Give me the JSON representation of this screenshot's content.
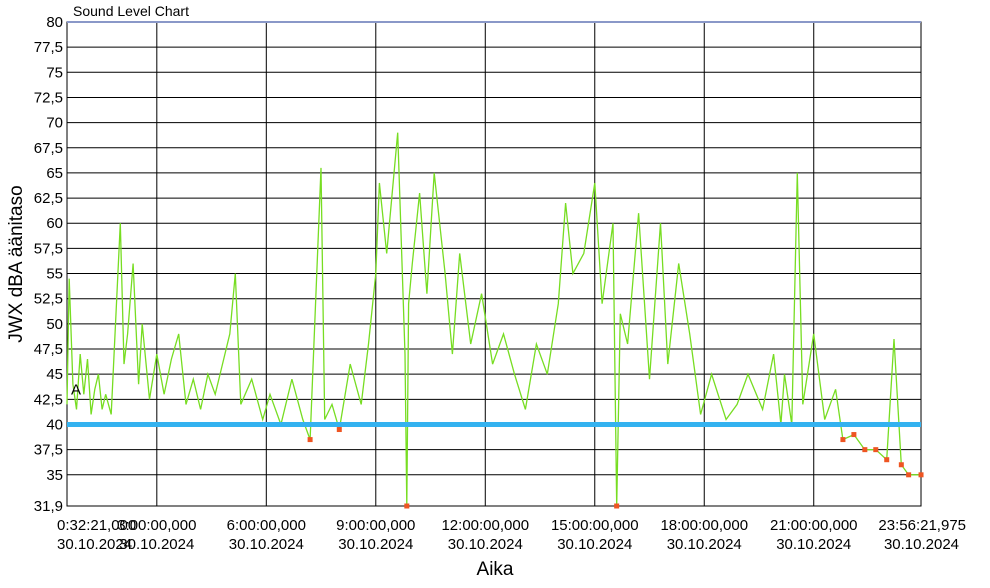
{
  "chart_data": {
    "type": "line",
    "title": "Sound Level Chart",
    "xlabel": "Aika",
    "ylabel": "JWX dBA äänitaso",
    "ylim": [
      31.9,
      80
    ],
    "xlim_hours": [
      0.539,
      23.939
    ],
    "y_ticks": [
      "80",
      "77,5",
      "75",
      "72,5",
      "70",
      "67,5",
      "65",
      "62,5",
      "60",
      "57,5",
      "55",
      "52,5",
      "50",
      "47,5",
      "45",
      "42,5",
      "40",
      "37,5",
      "35",
      "31,9"
    ],
    "x_ticks": [
      {
        "time": "0:32:21,000",
        "date": "30.10.2024"
      },
      {
        "time": "3:00:00,000",
        "date": "30.10.2024"
      },
      {
        "time": "6:00:00,000",
        "date": "30.10.2024"
      },
      {
        "time": "9:00:00,000",
        "date": "30.10.2024"
      },
      {
        "time": "12:00:00,000",
        "date": "30.10.2024"
      },
      {
        "time": "15:00:00,000",
        "date": "30.10.2024"
      },
      {
        "time": "18:00:00,000",
        "date": "30.10.2024"
      },
      {
        "time": "21:00:00,000",
        "date": "30.10.2024"
      },
      {
        "time": "23:56:21,975",
        "date": "30.10.2024"
      }
    ],
    "threshold": {
      "value": 40,
      "label": "A",
      "color": "#33b2f0"
    },
    "grid": true,
    "series": [
      {
        "color": "#77dd22",
        "marker_color": "#ee5522",
        "points": [
          [
            0.54,
            42.0
          ],
          [
            0.6,
            54.5
          ],
          [
            0.7,
            44.0
          ],
          [
            0.8,
            41.5
          ],
          [
            0.9,
            47.0
          ],
          [
            1.0,
            43.0
          ],
          [
            1.1,
            46.5
          ],
          [
            1.2,
            41.0
          ],
          [
            1.3,
            43.5
          ],
          [
            1.4,
            45.0
          ],
          [
            1.5,
            41.5
          ],
          [
            1.6,
            43.0
          ],
          [
            1.75,
            41.0
          ],
          [
            2.0,
            60.0
          ],
          [
            2.1,
            46.0
          ],
          [
            2.2,
            49.0
          ],
          [
            2.35,
            56.0
          ],
          [
            2.5,
            44.0
          ],
          [
            2.6,
            50.0
          ],
          [
            2.8,
            42.5
          ],
          [
            3.0,
            47.0
          ],
          [
            3.2,
            43.0
          ],
          [
            3.4,
            46.5
          ],
          [
            3.6,
            49.0
          ],
          [
            3.8,
            42.0
          ],
          [
            4.0,
            44.5
          ],
          [
            4.2,
            41.5
          ],
          [
            4.4,
            45.0
          ],
          [
            4.6,
            43.0
          ],
          [
            4.8,
            46.0
          ],
          [
            5.0,
            49.0
          ],
          [
            5.15,
            55.0
          ],
          [
            5.3,
            42.0
          ],
          [
            5.6,
            44.5
          ],
          [
            5.9,
            40.5
          ],
          [
            6.1,
            43.0
          ],
          [
            6.4,
            40.0
          ],
          [
            6.7,
            44.5
          ],
          [
            7.0,
            40.5
          ],
          [
            7.2,
            38.5
          ],
          [
            7.5,
            65.5
          ],
          [
            7.6,
            40.5
          ],
          [
            7.8,
            42.0
          ],
          [
            8.0,
            39.5
          ],
          [
            8.3,
            46.0
          ],
          [
            8.6,
            42.0
          ],
          [
            8.8,
            48.0
          ],
          [
            9.0,
            55.0
          ],
          [
            9.1,
            64.0
          ],
          [
            9.3,
            57.0
          ],
          [
            9.6,
            69.0
          ],
          [
            9.8,
            47.0
          ],
          [
            9.85,
            31.9
          ],
          [
            9.9,
            52.0
          ],
          [
            10.0,
            56.0
          ],
          [
            10.2,
            63.0
          ],
          [
            10.4,
            53.0
          ],
          [
            10.6,
            65.0
          ],
          [
            10.9,
            55.0
          ],
          [
            11.1,
            47.0
          ],
          [
            11.3,
            57.0
          ],
          [
            11.6,
            48.0
          ],
          [
            11.9,
            53.0
          ],
          [
            12.2,
            46.0
          ],
          [
            12.5,
            49.0
          ],
          [
            12.8,
            45.0
          ],
          [
            13.1,
            41.5
          ],
          [
            13.4,
            48.0
          ],
          [
            13.7,
            45.0
          ],
          [
            14.0,
            52.0
          ],
          [
            14.2,
            62.0
          ],
          [
            14.4,
            55.0
          ],
          [
            14.7,
            57.0
          ],
          [
            15.0,
            64.0
          ],
          [
            15.2,
            52.0
          ],
          [
            15.5,
            60.0
          ],
          [
            15.6,
            31.9
          ],
          [
            15.7,
            51.0
          ],
          [
            15.9,
            48.0
          ],
          [
            16.2,
            61.0
          ],
          [
            16.5,
            44.5
          ],
          [
            16.8,
            60.0
          ],
          [
            17.0,
            46.0
          ],
          [
            17.3,
            56.0
          ],
          [
            17.6,
            49.0
          ],
          [
            17.9,
            41.0
          ],
          [
            18.2,
            45.0
          ],
          [
            18.6,
            40.5
          ],
          [
            18.9,
            42.0
          ],
          [
            19.2,
            45.0
          ],
          [
            19.6,
            41.5
          ],
          [
            19.9,
            47.0
          ],
          [
            20.1,
            40.0
          ],
          [
            20.2,
            45.0
          ],
          [
            20.4,
            40.0
          ],
          [
            20.55,
            65.0
          ],
          [
            20.7,
            42.0
          ],
          [
            21.0,
            49.0
          ],
          [
            21.3,
            40.5
          ],
          [
            21.6,
            43.5
          ],
          [
            21.8,
            38.5
          ],
          [
            22.1,
            39.0
          ],
          [
            22.4,
            37.5
          ],
          [
            22.7,
            37.5
          ],
          [
            23.0,
            36.5
          ],
          [
            23.2,
            48.5
          ],
          [
            23.4,
            36.0
          ],
          [
            23.6,
            35.0
          ],
          [
            23.94,
            35.0
          ]
        ]
      }
    ]
  }
}
